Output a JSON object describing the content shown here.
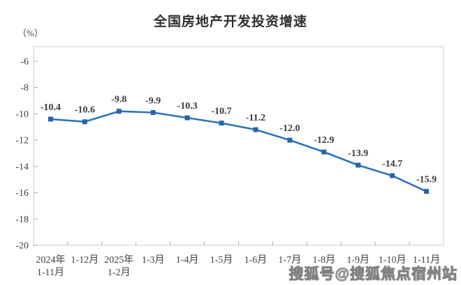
{
  "watermark": {
    "text": "搜狐号@搜狐焦点宿州站"
  },
  "chart_data": {
    "type": "line",
    "title": "全国房地产开发投资增速",
    "ylabel": "（%）",
    "xlabel": "",
    "categories": [
      [
        "2024年",
        "1-11月"
      ],
      [
        "1-12月"
      ],
      [
        "2025年",
        "1-2月"
      ],
      [
        "1-3月"
      ],
      [
        "1-4月"
      ],
      [
        "1-5月"
      ],
      [
        "1-6月"
      ],
      [
        "1-7月"
      ],
      [
        "1-8月"
      ],
      [
        "1-9月"
      ],
      [
        "1-10月"
      ],
      [
        "1-11月"
      ]
    ],
    "values": [
      -10.4,
      -10.6,
      -9.8,
      -9.9,
      -10.3,
      -10.7,
      -11.2,
      -12.0,
      -12.9,
      -13.9,
      -14.7,
      -15.9
    ],
    "value_labels": [
      "-10.4",
      "-10.6",
      "-9.8",
      "-9.9",
      "-10.3",
      "-10.7",
      "-11.2",
      "-12.0",
      "-12.9",
      "-13.9",
      "-14.7",
      "-15.9"
    ],
    "y_ticks": [
      -6,
      -8,
      -10,
      -12,
      -14,
      -16,
      -18,
      -20
    ],
    "ylim": [
      -20,
      -6
    ],
    "grid": false,
    "legend_position": "none",
    "line_color": "#2E74B5",
    "marker": "square",
    "marker_color": "#2565A8",
    "axis_border_color": "#CDCDCD",
    "tick_color": "#A8A8A8",
    "text_color": "#404040"
  }
}
